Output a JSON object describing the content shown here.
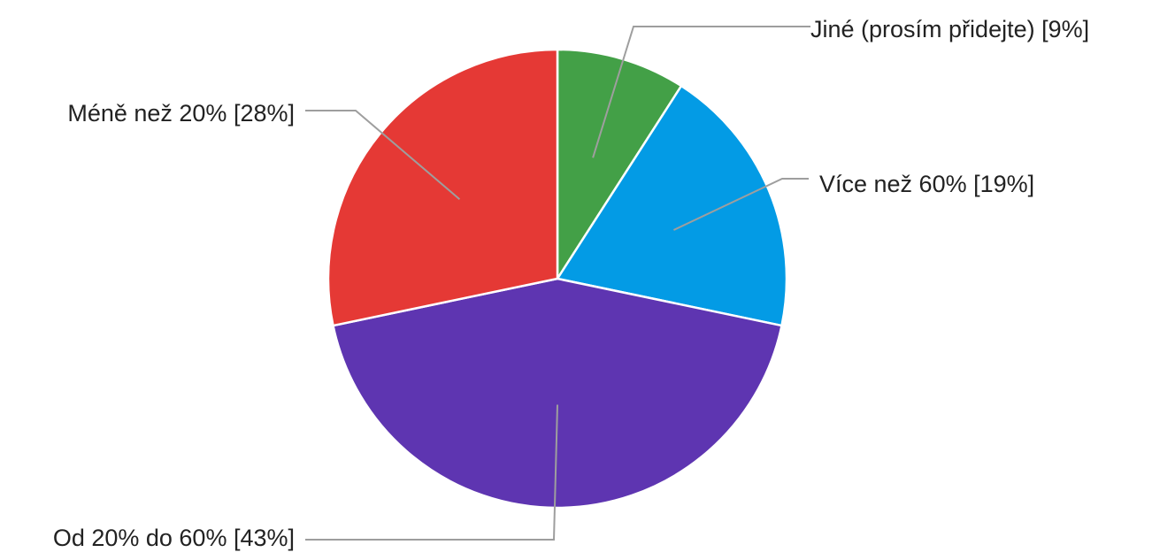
{
  "chart_data": {
    "type": "pie",
    "slices": [
      {
        "label": "Jiné (prosím přidejte) [9%]",
        "value": 9,
        "color": "#43A047"
      },
      {
        "label": "Více než 60% [19%]",
        "value": 19,
        "color": "#039BE5"
      },
      {
        "label": "Od 20% do 60% [43%]",
        "value": 43,
        "color": "#5E35B1"
      },
      {
        "label": "Méně než 20% [28%]",
        "value": 28,
        "color": "#E53935"
      }
    ]
  }
}
